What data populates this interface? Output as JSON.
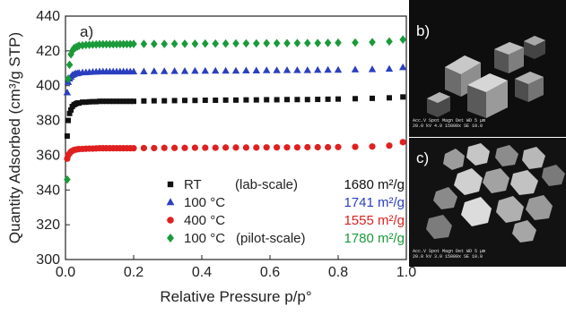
{
  "chart_data": {
    "type": "scatter",
    "panel_label": "a)",
    "xlabel": "Relative Pressure p/p°",
    "ylabel": "Quantity Adsorbed (cm³/g STP)",
    "xlim": [
      0.0,
      1.0
    ],
    "ylim": [
      300,
      440
    ],
    "xticks": [
      "0.0",
      "0.2",
      "0.4",
      "0.6",
      "0.8",
      "1.0"
    ],
    "yticks": [
      "300",
      "320",
      "340",
      "360",
      "380",
      "400",
      "420",
      "440"
    ],
    "grid": false,
    "legend_position": "bottom-right",
    "series": [
      {
        "name": "RT",
        "name_extra": "(lab-scale)",
        "surface_area": "1680 m²/g",
        "marker": "square",
        "color": "#111111",
        "label_color": "#111111",
        "x": [
          0.005,
          0.008,
          0.012,
          0.016,
          0.02,
          0.025,
          0.03,
          0.035,
          0.04,
          0.05,
          0.06,
          0.07,
          0.08,
          0.09,
          0.1,
          0.11,
          0.12,
          0.13,
          0.14,
          0.15,
          0.16,
          0.17,
          0.18,
          0.19,
          0.2,
          0.23,
          0.26,
          0.29,
          0.32,
          0.35,
          0.38,
          0.41,
          0.44,
          0.47,
          0.5,
          0.53,
          0.56,
          0.59,
          0.62,
          0.65,
          0.68,
          0.71,
          0.74,
          0.77,
          0.8,
          0.85,
          0.9,
          0.95,
          0.99
        ],
        "y": [
          371,
          380,
          384,
          386,
          388,
          389,
          389.5,
          390,
          390,
          390.5,
          390.5,
          390.7,
          390.8,
          390.8,
          391,
          391,
          391,
          391,
          391,
          391,
          391,
          391,
          391,
          391,
          391,
          391.2,
          391.3,
          391.3,
          391.4,
          391.5,
          391.5,
          391.6,
          391.6,
          391.7,
          391.7,
          391.8,
          391.8,
          391.9,
          391.9,
          392,
          392,
          392,
          392.1,
          392.2,
          392.3,
          392.5,
          392.7,
          393,
          393.5
        ]
      },
      {
        "name": "100 °C",
        "name_extra": "",
        "surface_area": "1741 m²/g",
        "marker": "triangle",
        "color": "#2a3fbf",
        "label_color": "#2a3fbf",
        "x": [
          0.005,
          0.008,
          0.012,
          0.016,
          0.02,
          0.025,
          0.03,
          0.035,
          0.04,
          0.05,
          0.06,
          0.07,
          0.08,
          0.09,
          0.1,
          0.11,
          0.12,
          0.13,
          0.14,
          0.15,
          0.16,
          0.17,
          0.18,
          0.19,
          0.2,
          0.23,
          0.26,
          0.29,
          0.32,
          0.35,
          0.38,
          0.41,
          0.44,
          0.47,
          0.5,
          0.53,
          0.56,
          0.59,
          0.62,
          0.65,
          0.68,
          0.71,
          0.74,
          0.77,
          0.8,
          0.85,
          0.9,
          0.95,
          0.99
        ],
        "y": [
          396,
          402,
          404,
          405,
          406,
          406.5,
          407,
          407,
          407.3,
          407.5,
          407.6,
          407.7,
          407.8,
          407.9,
          408,
          408,
          408,
          408,
          408,
          408,
          408,
          408,
          408,
          408,
          408,
          408.1,
          408.2,
          408.2,
          408.3,
          408.3,
          408.4,
          408.4,
          408.5,
          408.5,
          408.5,
          408.6,
          408.6,
          408.7,
          408.7,
          408.8,
          408.8,
          408.8,
          408.9,
          409,
          409,
          409.2,
          409.3,
          409.6,
          410.5
        ]
      },
      {
        "name": "400 °C",
        "name_extra": "",
        "surface_area": "1555 m²/g",
        "marker": "circle",
        "color": "#e02020",
        "label_color": "#e02020",
        "x": [
          0.005,
          0.008,
          0.012,
          0.016,
          0.02,
          0.025,
          0.03,
          0.035,
          0.04,
          0.05,
          0.06,
          0.07,
          0.08,
          0.09,
          0.1,
          0.11,
          0.12,
          0.13,
          0.14,
          0.15,
          0.16,
          0.17,
          0.18,
          0.19,
          0.2,
          0.23,
          0.26,
          0.29,
          0.32,
          0.35,
          0.38,
          0.41,
          0.44,
          0.47,
          0.5,
          0.53,
          0.56,
          0.59,
          0.62,
          0.65,
          0.68,
          0.71,
          0.74,
          0.77,
          0.8,
          0.85,
          0.9,
          0.95,
          0.99
        ],
        "y": [
          358,
          360,
          361,
          362,
          362.5,
          363,
          363.2,
          363.4,
          363.5,
          363.6,
          363.7,
          363.8,
          363.8,
          363.9,
          364,
          364,
          364,
          364,
          364,
          364,
          364,
          364,
          364,
          364,
          364,
          364.1,
          364.1,
          364.2,
          364.2,
          364.2,
          364.3,
          364.3,
          364.3,
          364.4,
          364.4,
          364.4,
          364.4,
          364.5,
          364.5,
          364.5,
          364.5,
          364.6,
          364.6,
          364.6,
          364.7,
          364.8,
          365,
          365.5,
          367.5
        ]
      },
      {
        "name": "100 °C",
        "name_extra": "(pilot-scale)",
        "surface_area": "1780 m²/g",
        "marker": "diamond",
        "color": "#1a9a3a",
        "label_color": "#1a9a3a",
        "x": [
          0.005,
          0.008,
          0.012,
          0.016,
          0.02,
          0.025,
          0.03,
          0.035,
          0.04,
          0.05,
          0.06,
          0.07,
          0.08,
          0.09,
          0.1,
          0.11,
          0.12,
          0.13,
          0.14,
          0.15,
          0.16,
          0.17,
          0.18,
          0.19,
          0.2,
          0.23,
          0.26,
          0.29,
          0.32,
          0.35,
          0.38,
          0.41,
          0.44,
          0.47,
          0.5,
          0.53,
          0.56,
          0.59,
          0.62,
          0.65,
          0.68,
          0.71,
          0.74,
          0.77,
          0.8,
          0.85,
          0.9,
          0.95,
          0.99
        ],
        "y": [
          346,
          404,
          412,
          418,
          420,
          421.5,
          422,
          422.5,
          423,
          423.2,
          423.4,
          423.5,
          423.6,
          423.7,
          423.8,
          423.8,
          423.8,
          423.8,
          423.8,
          423.8,
          423.9,
          423.9,
          423.9,
          423.9,
          424,
          424,
          424,
          424,
          424.1,
          424.1,
          424.1,
          424.2,
          424.2,
          424.2,
          424.3,
          424.3,
          424.3,
          424.4,
          424.4,
          424.4,
          424.5,
          424.5,
          424.5,
          424.6,
          424.7,
          424.8,
          425,
          425.4,
          426.5
        ]
      }
    ]
  },
  "micrographs": [
    {
      "panel_label": "b)",
      "scale_caption": "Acc.V  Spot Magn   Det  WD          5 μm",
      "scale_values": "20.0 kV 4.0  15000x  SE  10.0"
    },
    {
      "panel_label": "c)",
      "scale_caption": "Acc.V  Spot Magn   Det  WD          5 μm",
      "scale_values": "20.0 kV 3.0  15000x  SE  10.0"
    }
  ],
  "colors": {
    "sem_background": "#0e0e0e",
    "sem_crystal_light": "#d8d8d8",
    "sem_crystal_mid": "#8a8a8a",
    "sem_crystal_dark": "#3a3a3a"
  }
}
